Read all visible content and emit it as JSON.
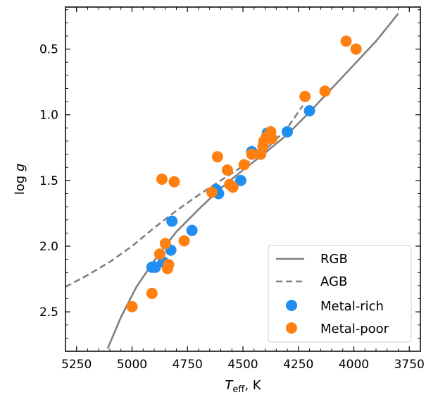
{
  "chart_data": {
    "type": "scatter",
    "title": "",
    "xlabel_main": "T",
    "xlabel_sub": "eff",
    "xlabel_unit": ", K",
    "ylabel_main": "log ",
    "ylabel_italic": "g",
    "xlim": [
      5300,
      3700
    ],
    "ylim": [
      2.8,
      0.18
    ],
    "x_ticks": [
      5250,
      5000,
      4750,
      4500,
      4250,
      4000,
      3750
    ],
    "y_ticks": [
      0.5,
      1.0,
      1.5,
      2.0,
      2.5
    ],
    "x_tick_labels": [
      "5250",
      "5000",
      "4750",
      "4500",
      "4250",
      "4000",
      "3750"
    ],
    "y_tick_labels": [
      "0.5",
      "1.0",
      "1.5",
      "2.0",
      "2.5"
    ],
    "legend_position": "lower-right",
    "grid": false,
    "series": [
      {
        "name": "RGB",
        "kind": "line",
        "style": "solid",
        "color": "#808080",
        "x": [
          5110,
          5050,
          4980,
          4900,
          4800,
          4700,
          4600,
          4500,
          4400,
          4300,
          4200,
          4100,
          4000,
          3900,
          3800
        ],
        "y": [
          2.78,
          2.54,
          2.31,
          2.11,
          1.89,
          1.72,
          1.56,
          1.42,
          1.29,
          1.15,
          0.98,
          0.8,
          0.62,
          0.44,
          0.23
        ]
      },
      {
        "name": "AGB",
        "kind": "line",
        "style": "dashed",
        "color": "#808080",
        "x": [
          5300,
          5200,
          5100,
          5000,
          4900,
          4800,
          4700,
          4600,
          4500,
          4400,
          4300,
          4230
        ],
        "y": [
          2.31,
          2.22,
          2.12,
          2.0,
          1.86,
          1.73,
          1.61,
          1.5,
          1.39,
          1.27,
          1.1,
          0.93
        ]
      },
      {
        "name": "Metal-rich",
        "kind": "scatter",
        "color": "#1f8ef0",
        "x": [
          4910,
          4895,
          4860,
          4825,
          4820,
          4730,
          4620,
          4610,
          4510,
          4460,
          4390,
          4300,
          4200
        ],
        "y": [
          2.16,
          2.16,
          2.12,
          2.03,
          1.81,
          1.88,
          1.57,
          1.6,
          1.5,
          1.28,
          1.14,
          1.13,
          0.97
        ]
      },
      {
        "name": "Metal-poor",
        "kind": "scatter",
        "color": "#ff8010",
        "x": [
          5000,
          4910,
          4875,
          4865,
          4850,
          4840,
          4835,
          4810,
          4765,
          4640,
          4615,
          4570,
          4560,
          4545,
          4495,
          4460,
          4420,
          4410,
          4405,
          4395,
          4385,
          4375,
          4370,
          4220,
          4130,
          4035,
          3990
        ],
        "y": [
          2.46,
          2.36,
          2.06,
          1.49,
          1.98,
          2.17,
          2.14,
          1.51,
          1.96,
          1.59,
          1.32,
          1.42,
          1.53,
          1.55,
          1.38,
          1.3,
          1.3,
          1.24,
          1.2,
          1.17,
          1.16,
          1.13,
          1.18,
          0.86,
          0.82,
          0.44,
          0.5
        ]
      }
    ]
  }
}
